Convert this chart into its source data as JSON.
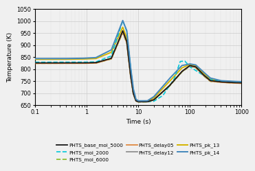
{
  "title": "",
  "xlabel": "Time (s)",
  "ylabel": "Temperature (K)",
  "xlim": [
    0.1,
    1000
  ],
  "ylim": [
    650,
    1050
  ],
  "yticks": [
    650,
    700,
    750,
    800,
    850,
    900,
    950,
    1000,
    1050
  ],
  "plot_bg": "#f0f0f0",
  "fig_bg": "#f0f0f0",
  "series": [
    {
      "name": "PHTS_base_moi_5000",
      "color": "#1a1a1a",
      "linestyle": "solid",
      "linewidth": 1.3,
      "zorder": 5
    },
    {
      "name": "PHTS_moi_2000",
      "color": "#00c8d8",
      "linestyle": "dashed",
      "linewidth": 1.2,
      "zorder": 4
    },
    {
      "name": "PHTS_moi_6000",
      "color": "#88bb22",
      "linestyle": "dashed",
      "linewidth": 1.2,
      "zorder": 3
    },
    {
      "name": "PHTS_delay05",
      "color": "#e08840",
      "linestyle": "solid",
      "linewidth": 1.3,
      "zorder": 4
    },
    {
      "name": "PHTS_delay12",
      "color": "#909090",
      "linestyle": "solid",
      "linewidth": 1.3,
      "zorder": 3
    },
    {
      "name": "PHTS_pk_13",
      "color": "#d4b400",
      "linestyle": "solid",
      "linewidth": 1.4,
      "zorder": 3
    },
    {
      "name": "PHTS_pk_14",
      "color": "#4488bb",
      "linestyle": "solid",
      "linewidth": 1.4,
      "zorder": 6
    }
  ],
  "legend_fontsize": 5.2,
  "axis_fontsize": 6.5,
  "tick_fontsize": 6.0
}
